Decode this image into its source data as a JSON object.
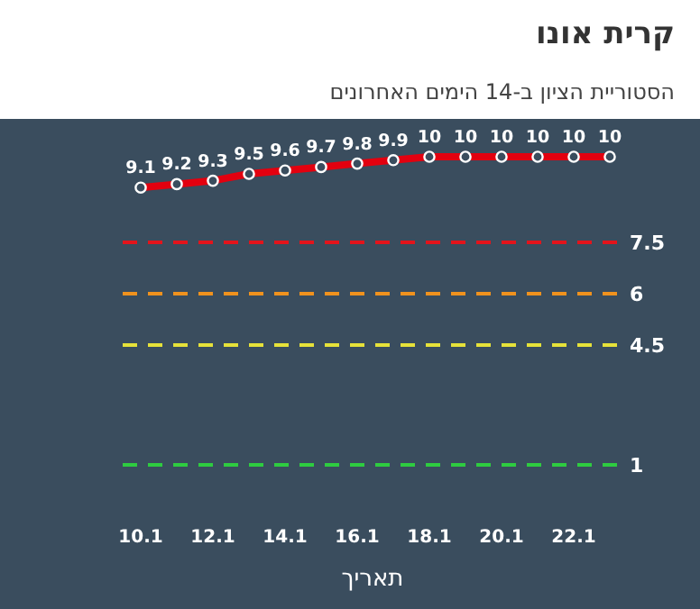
{
  "chart_data": {
    "type": "line",
    "title": "קרית אונו",
    "subtitle": "הסטוריית הציון ב-14 הימים האחרונים",
    "xlabel": "תאריך",
    "categories": [
      "10.1",
      null,
      "12.1",
      null,
      "14.1",
      null,
      "16.1",
      null,
      "18.1",
      null,
      "20.1",
      null,
      "22.1",
      null
    ],
    "series": [
      {
        "color": "#e3000f",
        "values": [
          9.1,
          9.2,
          9.3,
          9.5,
          9.6,
          9.7,
          9.8,
          9.9,
          10,
          10,
          10,
          10,
          10,
          10
        ]
      }
    ],
    "data_labels": true,
    "marker": "circle",
    "line_style": "solid",
    "tick_labels": "x",
    "ref_lines": [
      {
        "axis": "y",
        "value": 7.5,
        "label": "7.5",
        "color": "#e3141b",
        "line_style": "dashed"
      },
      {
        "axis": "y",
        "value": 6,
        "label": "6",
        "color": "#f0921e",
        "line_style": "dashed"
      },
      {
        "axis": "y",
        "value": 4.5,
        "label": "4.5",
        "color": "#e6e23a",
        "line_style": "dashed"
      },
      {
        "axis": "y",
        "value": 1,
        "label": "1",
        "color": "#2ecc40",
        "line_style": "dashed"
      }
    ]
  }
}
